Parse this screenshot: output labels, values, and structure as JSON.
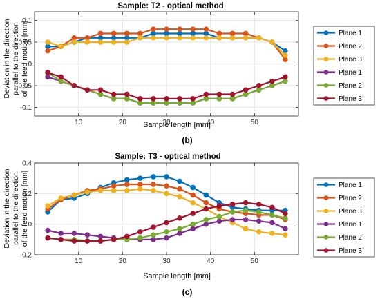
{
  "colors": {
    "plane1": "#0072BD",
    "plane2": "#D95319",
    "plane3": "#EDB120",
    "plane1p": "#7E2F8E",
    "plane2p": "#77AC30",
    "plane3p": "#A2142F",
    "grid": "#e6e6e6",
    "axis": "#262626"
  },
  "chart_data": [
    {
      "type": "line",
      "panel_label": "(b)",
      "title": "Sample: T2 - optical method",
      "xlabel": "Sample length [mm]",
      "ylabel_lines": [
        "Deviation in the direction",
        "parallel to the direction",
        "of the feed motion [mm]"
      ],
      "xlim": [
        0,
        60
      ],
      "ylim": [
        -0.12,
        0.12
      ],
      "xticks": [
        {
          "v": 10,
          "label": "10"
        },
        {
          "v": 20,
          "label": "20"
        },
        {
          "v": 30,
          "label": "30"
        },
        {
          "v": 40,
          "label": "40"
        },
        {
          "v": 50,
          "label": "50"
        }
      ],
      "yticks": [
        {
          "v": -0.1,
          "label": "-0.1"
        },
        {
          "v": -0.05,
          "label": "-0.05"
        },
        {
          "v": 0,
          "label": "0"
        },
        {
          "v": 0.05,
          "label": "0.05"
        },
        {
          "v": 0.1,
          "label": "0.1"
        }
      ],
      "grid": true,
      "legend_position": "outside-right",
      "x": [
        3,
        6,
        9,
        12,
        15,
        18,
        21,
        24,
        27,
        30,
        33,
        36,
        39,
        42,
        45,
        48,
        51,
        54,
        57
      ],
      "series": [
        {
          "name": "Plane 1",
          "color_key": "plane1",
          "values": [
            0.04,
            0.04,
            0.05,
            0.06,
            0.06,
            0.06,
            0.06,
            0.06,
            0.07,
            0.07,
            0.07,
            0.07,
            0.07,
            0.06,
            0.06,
            0.06,
            0.06,
            0.05,
            0.03
          ]
        },
        {
          "name": "Plane 2",
          "color_key": "plane2",
          "values": [
            0.03,
            0.04,
            0.06,
            0.06,
            0.07,
            0.07,
            0.07,
            0.07,
            0.08,
            0.08,
            0.08,
            0.08,
            0.08,
            0.07,
            0.07,
            0.07,
            0.06,
            0.05,
            0.01
          ]
        },
        {
          "name": "Plane 3",
          "color_key": "plane3",
          "values": [
            0.05,
            0.04,
            0.05,
            0.05,
            0.05,
            0.05,
            0.05,
            0.06,
            0.06,
            0.06,
            0.06,
            0.06,
            0.06,
            0.06,
            0.06,
            0.06,
            0.06,
            0.05,
            0.02
          ]
        },
        {
          "name": "Plane 1`",
          "color_key": "plane1p",
          "values": [
            -0.03,
            -0.04,
            -0.05,
            -0.06,
            -0.07,
            -0.08,
            -0.08,
            -0.09,
            -0.09,
            -0.09,
            -0.09,
            -0.09,
            -0.08,
            -0.08,
            -0.08,
            -0.07,
            -0.06,
            -0.05,
            -0.04
          ]
        },
        {
          "name": "Plane 2`",
          "color_key": "plane2p",
          "values": [
            -0.02,
            -0.04,
            -0.05,
            -0.06,
            -0.07,
            -0.08,
            -0.08,
            -0.09,
            -0.09,
            -0.09,
            -0.09,
            -0.09,
            -0.08,
            -0.08,
            -0.08,
            -0.07,
            -0.06,
            -0.05,
            -0.04
          ]
        },
        {
          "name": "Plane 3`",
          "color_key": "plane3p",
          "values": [
            -0.02,
            -0.03,
            -0.05,
            -0.06,
            -0.06,
            -0.07,
            -0.07,
            -0.08,
            -0.08,
            -0.08,
            -0.08,
            -0.08,
            -0.07,
            -0.07,
            -0.07,
            -0.06,
            -0.05,
            -0.04,
            -0.03
          ]
        }
      ]
    },
    {
      "type": "line",
      "panel_label": "(c)",
      "title": "Sample: T3 - optical method",
      "xlabel": "Sample length [mm]",
      "ylabel_lines": [
        "Deviation in the direction",
        "parallel to the direction",
        "of the feed motion [mm]"
      ],
      "xlim": [
        0,
        60
      ],
      "ylim": [
        -0.2,
        0.4
      ],
      "xticks": [
        {
          "v": 10,
          "label": "10"
        },
        {
          "v": 20,
          "label": "20"
        },
        {
          "v": 30,
          "label": "30"
        },
        {
          "v": 40,
          "label": "40"
        },
        {
          "v": 50,
          "label": "50"
        }
      ],
      "yticks": [
        {
          "v": -0.2,
          "label": "-0.2"
        },
        {
          "v": 0,
          "label": "0"
        },
        {
          "v": 0.2,
          "label": "0.2"
        },
        {
          "v": 0.4,
          "label": "0.4"
        }
      ],
      "grid": true,
      "legend_position": "outside-right",
      "x": [
        3,
        6,
        9,
        12,
        15,
        18,
        21,
        24,
        27,
        30,
        33,
        36,
        39,
        42,
        45,
        48,
        51,
        54,
        57
      ],
      "series": [
        {
          "name": "Plane 1",
          "color_key": "plane1",
          "values": [
            0.08,
            0.16,
            0.17,
            0.2,
            0.24,
            0.27,
            0.29,
            0.3,
            0.31,
            0.31,
            0.28,
            0.24,
            0.19,
            0.14,
            0.11,
            0.1,
            0.09,
            0.09,
            0.09
          ]
        },
        {
          "name": "Plane 2",
          "color_key": "plane2",
          "values": [
            0.1,
            0.16,
            0.19,
            0.22,
            0.23,
            0.25,
            0.26,
            0.26,
            0.26,
            0.25,
            0.23,
            0.19,
            0.14,
            0.1,
            0.08,
            0.07,
            0.06,
            0.06,
            0.03
          ]
        },
        {
          "name": "Plane 3",
          "color_key": "plane3",
          "values": [
            0.12,
            0.17,
            0.19,
            0.21,
            0.22,
            0.22,
            0.22,
            0.23,
            0.22,
            0.2,
            0.18,
            0.14,
            0.1,
            0.05,
            0.01,
            -0.03,
            -0.05,
            -0.06,
            -0.07
          ]
        },
        {
          "name": "Plane 1`",
          "color_key": "plane1p",
          "values": [
            -0.04,
            -0.06,
            -0.06,
            -0.07,
            -0.08,
            -0.09,
            -0.1,
            -0.1,
            -0.1,
            -0.09,
            -0.06,
            -0.03,
            0.0,
            0.02,
            0.03,
            0.03,
            0.02,
            0.01,
            -0.03
          ]
        },
        {
          "name": "Plane 2`",
          "color_key": "plane2p",
          "values": [
            -0.09,
            -0.1,
            -0.1,
            -0.11,
            -0.11,
            -0.1,
            -0.1,
            -0.09,
            -0.07,
            -0.05,
            -0.03,
            0.0,
            0.03,
            0.05,
            0.08,
            0.09,
            0.08,
            0.06,
            0.04
          ]
        },
        {
          "name": "Plane 3`",
          "color_key": "plane3p",
          "values": [
            -0.09,
            -0.1,
            -0.11,
            -0.11,
            -0.11,
            -0.1,
            -0.08,
            -0.05,
            -0.02,
            0.01,
            0.04,
            0.07,
            0.1,
            0.12,
            0.13,
            0.14,
            0.13,
            0.11,
            0.07
          ]
        }
      ]
    }
  ]
}
